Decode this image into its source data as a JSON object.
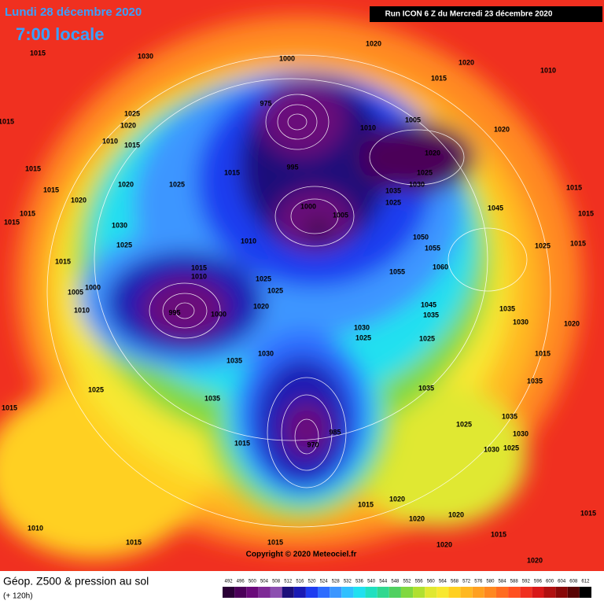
{
  "header": {
    "date": "Lundi 28 décembre 2020",
    "time": "7:00 locale",
    "run": "Run ICON 6 Z du Mercredi 23 décembre 2020"
  },
  "footer": {
    "title": "Géop. Z500 & pression au sol",
    "lead": "(+ 120h)",
    "copyright": "Copyright © 2020 Meteociel.fr"
  },
  "scale": {
    "labels": [
      492,
      496,
      500,
      504,
      508,
      512,
      516,
      520,
      524,
      528,
      532,
      536,
      540,
      544,
      548,
      552,
      556,
      560,
      564,
      568,
      572,
      576,
      580,
      584,
      588,
      592,
      596,
      600,
      604,
      608,
      612
    ],
    "colors": [
      "#2a0036",
      "#4b0059",
      "#6a0a7a",
      "#7e2a96",
      "#8c4fb0",
      "#1c0f7a",
      "#1a1ab4",
      "#1e3cf0",
      "#2e6cff",
      "#3c96ff",
      "#30c0ff",
      "#20e0f0",
      "#20e0c0",
      "#30d890",
      "#50d060",
      "#80d840",
      "#b0e030",
      "#e0e830",
      "#f8e830",
      "#ffd020",
      "#ffb820",
      "#ffa020",
      "#ff8820",
      "#ff6c20",
      "#ff5020",
      "#f03020",
      "#d81818",
      "#b01010",
      "#880808",
      "#580404",
      "#000000"
    ]
  },
  "isobars": [
    "1015",
    "1030",
    "1000",
    "1020",
    "1020",
    "1010",
    "1015",
    "1015",
    "975",
    "1025",
    "1020",
    "1010",
    "1015",
    "1010",
    "1005",
    "1020",
    "1020",
    "995",
    "1025",
    "1030",
    "1035",
    "1025",
    "1015",
    "1015",
    "1025",
    "1020",
    "1015",
    "1020",
    "1015",
    "1015",
    "1030",
    "1025",
    "1010",
    "1000",
    "1005",
    "1045",
    "1015",
    "1015",
    "1050",
    "1055",
    "1060",
    "1055",
    "1025",
    "1015",
    "1015",
    "1015",
    "1010",
    "1025",
    "1025",
    "1000",
    "1005",
    "1010",
    "995",
    "1000",
    "1020",
    "1045",
    "1035",
    "1030",
    "1025",
    "1025",
    "1035",
    "1030",
    "1020",
    "1015",
    "1035",
    "1030",
    "1025",
    "1035",
    "1015",
    "1035",
    "1035",
    "1035",
    "1030",
    "985",
    "970",
    "1015",
    "1025",
    "1030",
    "1025",
    "1010",
    "1015",
    "1015",
    "1015",
    "1020",
    "1020",
    "1020",
    "1020",
    "1015",
    "1015",
    "1020"
  ]
}
